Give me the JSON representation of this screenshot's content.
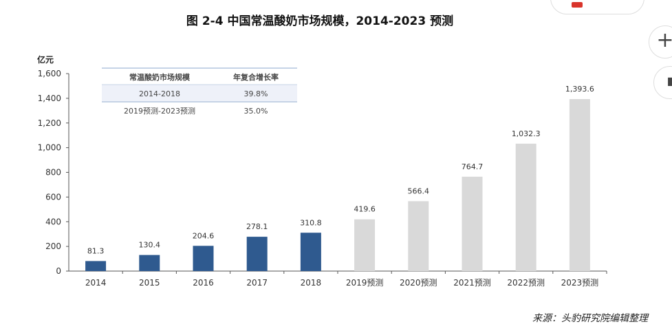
{
  "title": "图  2-4 中国常温酸奶市场规模，2014-2023 预测",
  "source": "来源：头豹研究院编辑整理",
  "chart_data": {
    "type": "bar",
    "title": "图  2-4 中国常温酸奶市场规模，2014-2023 预测",
    "ylabel": "亿元",
    "xlabel": "",
    "ylim": [
      0,
      1600
    ],
    "yticks": [
      "0",
      "200",
      "400",
      "600",
      "800",
      "1,000",
      "1,200",
      "1,400",
      "1,600"
    ],
    "grid": false,
    "categories": [
      "2014",
      "2015",
      "2016",
      "2017",
      "2018",
      "2019预测",
      "2020预测",
      "2021预测",
      "2022预测",
      "2023预测"
    ],
    "values": [
      81.3,
      130.4,
      204.6,
      278.1,
      310.8,
      419.6,
      566.4,
      764.7,
      1032.3,
      1393.6
    ],
    "data_labels": [
      "81.3",
      "130.4",
      "204.6",
      "278.1",
      "310.8",
      "419.6",
      "566.4",
      "764.7",
      "1,032.3",
      "1,393.6"
    ],
    "colors": {
      "actual": "#2f5a8f",
      "forecast": "#d9d9d9"
    },
    "forecast_start_index": 5,
    "inset_table": {
      "headers": [
        "常温酸奶市场规模",
        "年复合增长率"
      ],
      "rows": [
        [
          "2014-2018",
          "39.8%"
        ],
        [
          "2019预测-2023预测",
          "35.0%"
        ]
      ]
    }
  },
  "ui": {
    "zoom_in_icon": "plus-icon",
    "second_button_icon": "document-icon"
  }
}
